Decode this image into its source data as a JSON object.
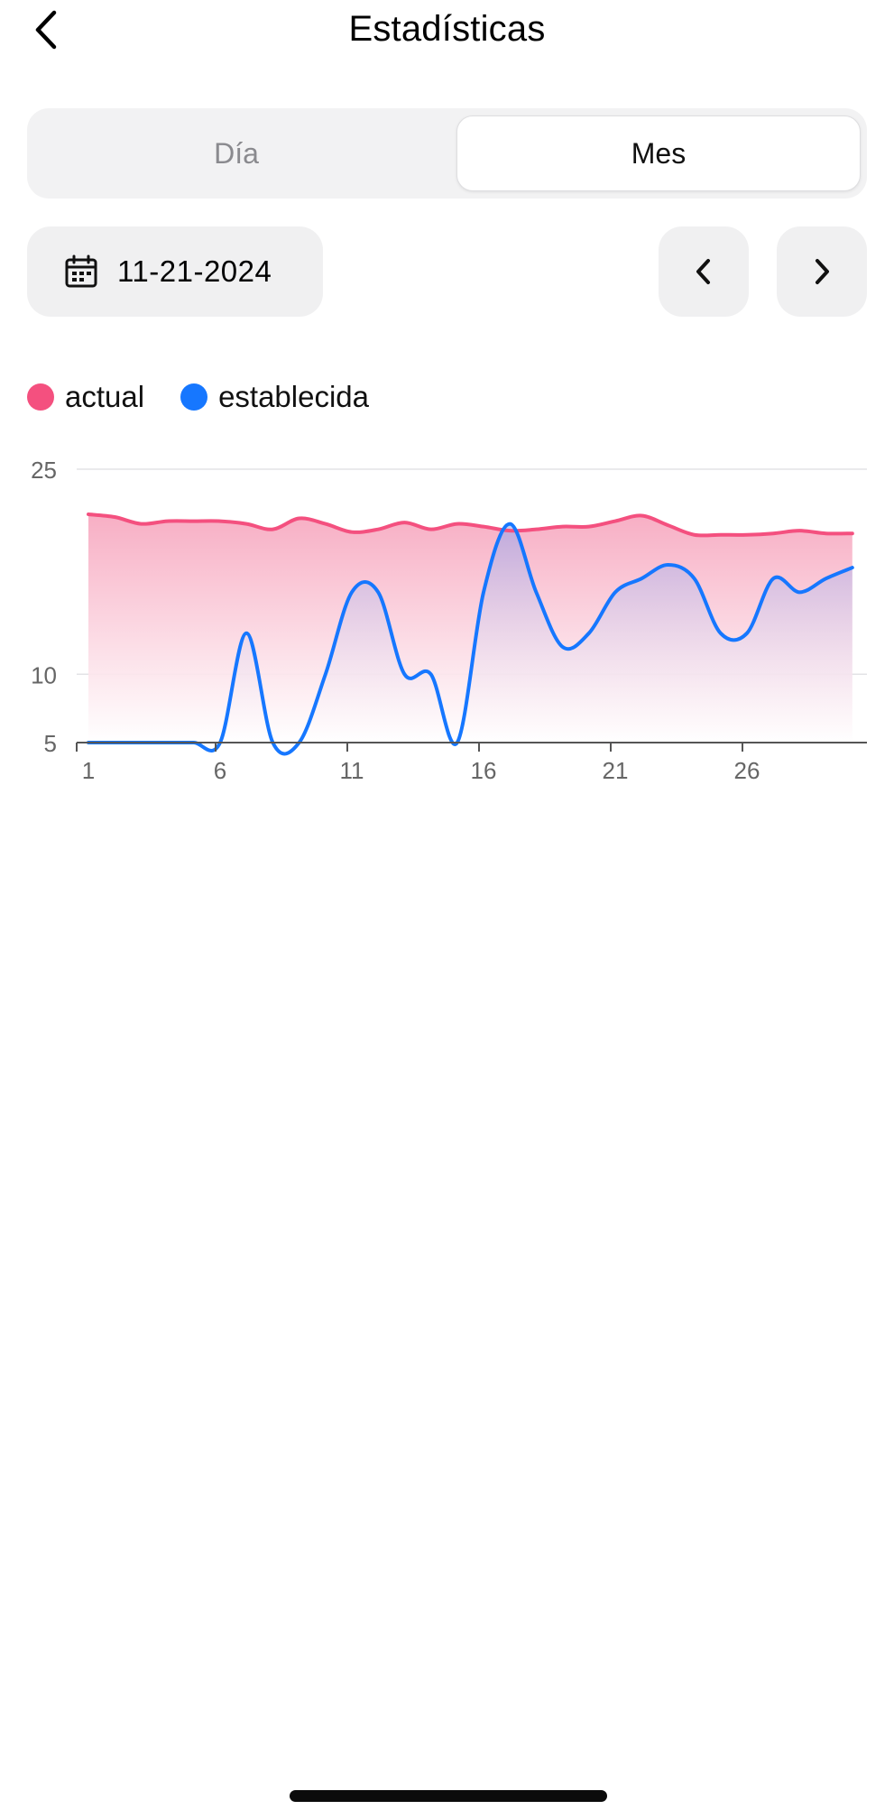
{
  "header": {
    "title": "Estadísticas",
    "back_icon": "chevron-left-icon"
  },
  "period_tabs": {
    "day_label": "Día",
    "month_label": "Mes",
    "selected": "Mes"
  },
  "date_picker": {
    "icon": "calendar-icon",
    "value": "11-21-2024"
  },
  "navigation": {
    "prev_icon": "chevron-left-icon",
    "next_icon": "chevron-right-icon"
  },
  "legend": [
    {
      "label": "actual",
      "color": "#f4507f"
    },
    {
      "label": "establecida",
      "color": "#1677ff"
    }
  ],
  "chart_data": {
    "type": "area",
    "x": [
      1,
      2,
      3,
      4,
      5,
      6,
      7,
      8,
      9,
      10,
      11,
      12,
      13,
      14,
      15,
      16,
      17,
      18,
      19,
      20,
      21,
      22,
      23,
      24,
      25,
      26,
      27,
      28,
      29,
      30
    ],
    "x_ticks": [
      1,
      6,
      11,
      16,
      21,
      26
    ],
    "y_ticks": [
      5,
      10,
      25
    ],
    "ylim": [
      5,
      25
    ],
    "grid": true,
    "legend_position": "top-left",
    "series": [
      {
        "name": "actual",
        "color": "#f4507f",
        "values": [
          21.7,
          21.5,
          21.0,
          21.2,
          21.2,
          21.2,
          21.0,
          20.6,
          21.4,
          21.0,
          20.4,
          20.6,
          21.1,
          20.6,
          21.0,
          20.8,
          20.5,
          20.6,
          20.8,
          20.8,
          21.2,
          21.6,
          20.9,
          20.2,
          20.2,
          20.2,
          20.3,
          20.5,
          20.3,
          20.3
        ]
      },
      {
        "name": "establecida",
        "color": "#1677ff",
        "values": [
          5,
          5,
          5,
          5,
          5,
          5,
          13,
          5,
          5,
          10,
          16,
          16,
          10,
          10,
          5,
          16,
          21,
          16,
          12,
          13,
          16,
          17,
          18,
          17,
          13,
          13,
          17,
          16,
          17,
          17.8
        ]
      }
    ]
  }
}
